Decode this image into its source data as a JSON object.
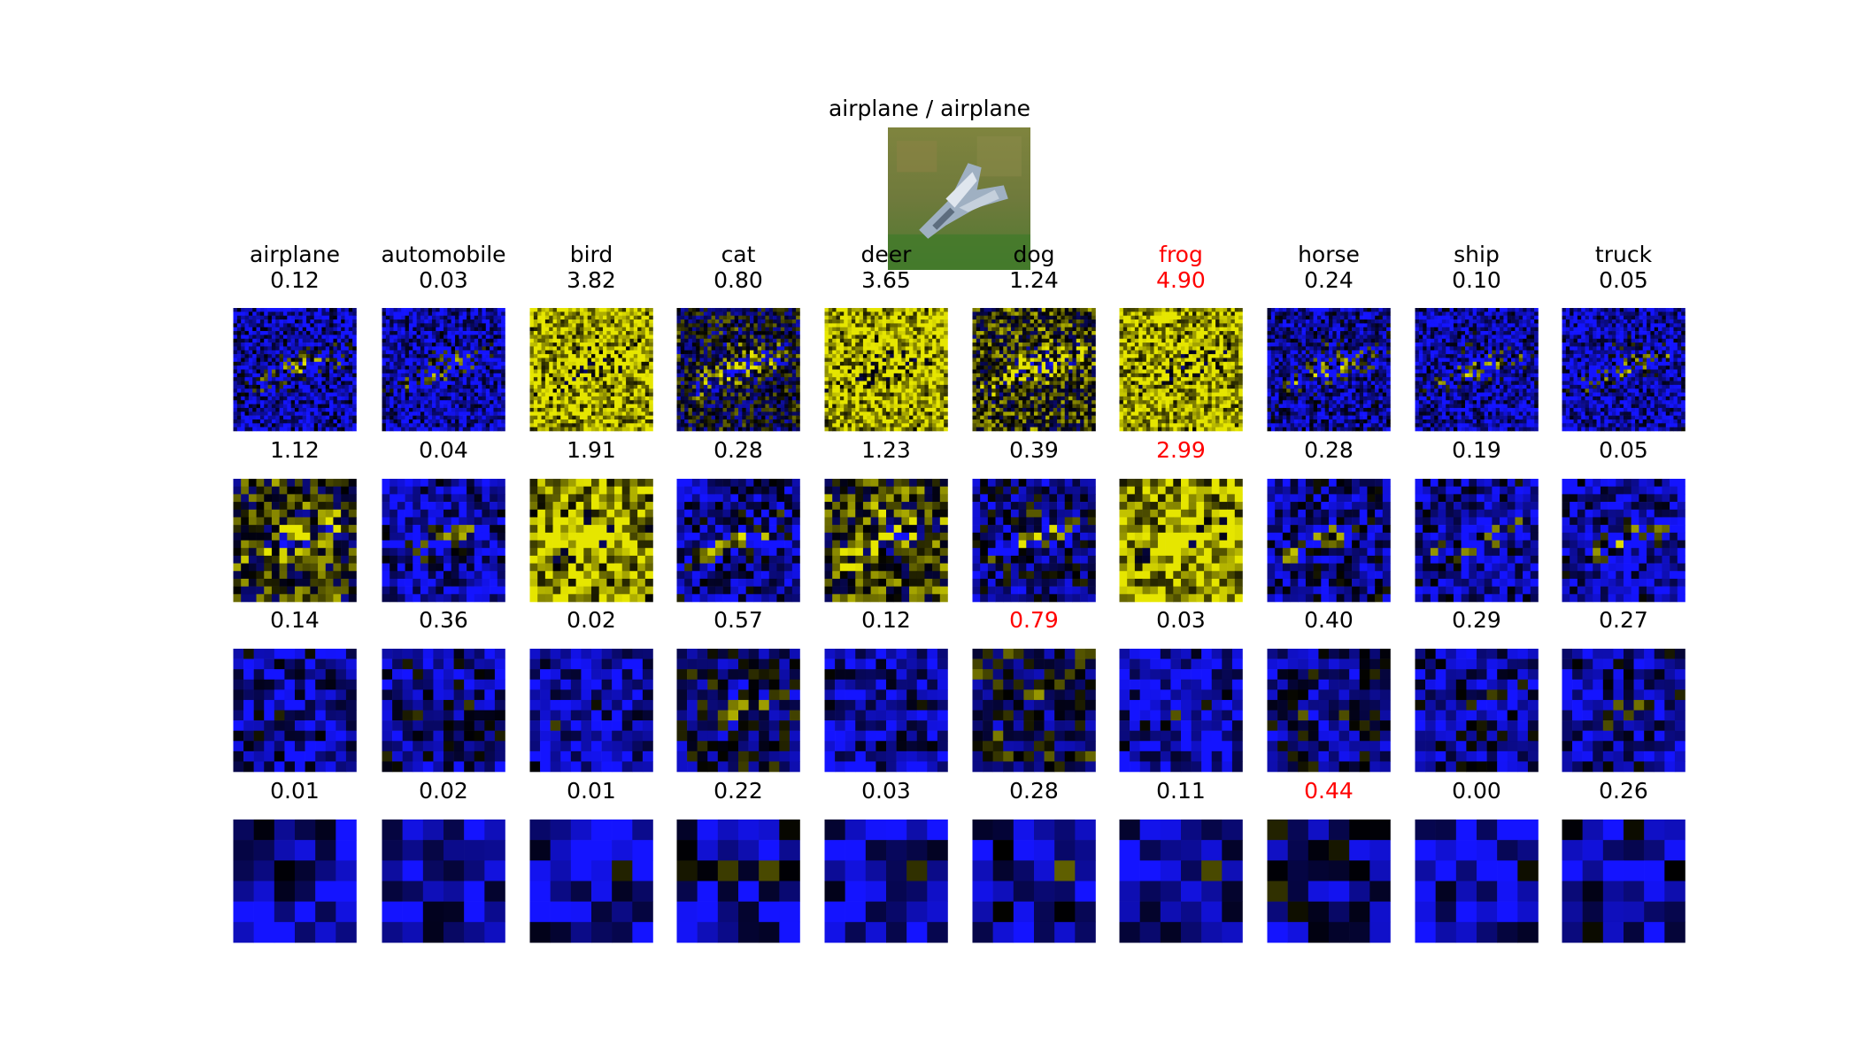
{
  "figure": {
    "title": "airplane / airplane",
    "columns": [
      "airplane",
      "automobile",
      "bird",
      "cat",
      "deer",
      "dog",
      "frog",
      "horse",
      "ship",
      "truck"
    ],
    "layers": [
      {
        "scores": [
          "0.12",
          "0.03",
          "3.82",
          "0.80",
          "3.65",
          "1.24",
          "4.90",
          "0.24",
          "0.10",
          "0.05"
        ],
        "highlight_index": 6
      },
      {
        "scores": [
          "1.12",
          "0.04",
          "1.91",
          "0.28",
          "1.23",
          "0.39",
          "2.99",
          "0.28",
          "0.19",
          "0.05"
        ],
        "highlight_index": 6
      },
      {
        "scores": [
          "0.14",
          "0.36",
          "0.02",
          "0.57",
          "0.12",
          "0.79",
          "0.03",
          "0.40",
          "0.29",
          "0.27"
        ],
        "highlight_index": 5
      },
      {
        "scores": [
          "0.01",
          "0.02",
          "0.01",
          "0.22",
          "0.03",
          "0.28",
          "0.11",
          "0.44",
          "0.00",
          "0.26"
        ],
        "highlight_index": 7
      }
    ]
  },
  "colors": {
    "positive": "#f2f200",
    "negative": "#1a1aff",
    "neutral": "#000000",
    "highlight": "#ff0000"
  }
}
